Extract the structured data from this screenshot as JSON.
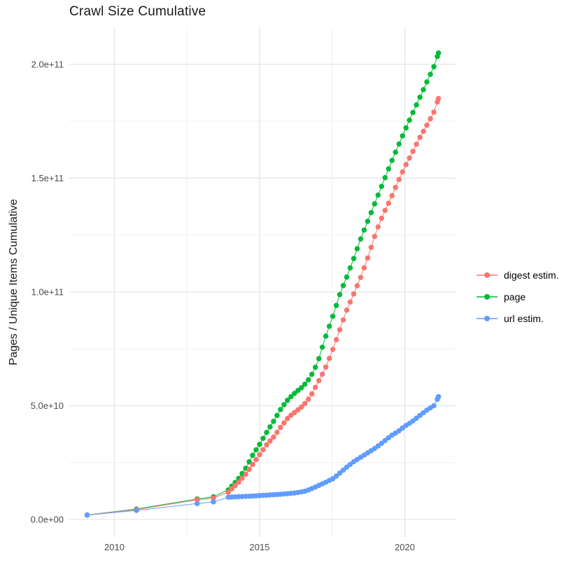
{
  "figure": {
    "title": "Crawl Size Cumulative",
    "y_axis_title": "Pages / Unique Items Cumulative"
  },
  "chart_data": {
    "type": "scatter",
    "title": "Crawl Size Cumulative",
    "xlabel": "",
    "ylabel": "Pages / Unique Items Cumulative",
    "grid": true,
    "legend_position": "right",
    "xlim": [
      2008.446,
      2021.747
    ],
    "ylim": [
      -7700000000.0,
      216600000000.0
    ],
    "x_ticks": {
      "major": [
        2010,
        2015,
        2020
      ],
      "major_labels": [
        "2010",
        "2015",
        "2020"
      ],
      "minor": [
        2012.5,
        2017.5
      ]
    },
    "y_ticks": {
      "major": [
        0,
        50000000000.0,
        100000000000.0,
        150000000000.0,
        200000000000.0
      ],
      "major_labels": [
        "0.0e+00",
        "5.0e+10",
        "1.0e+11",
        "1.5e+11",
        "2.0e+11"
      ],
      "minor": [
        25000000000.0,
        75000000000.0,
        125000000000.0,
        175000000000.0
      ]
    },
    "dense_from_year": 2013.92,
    "point_interval_years": 0.12,
    "point_radius": 3.75,
    "draw_order": [
      "page",
      "digest estim.",
      "url estim."
    ],
    "series": [
      {
        "name": "digest estim.",
        "color": "#F8766D",
        "points": [
          [
            2009.06,
            2000000000.0
          ],
          [
            2010.76,
            4400000000.0
          ],
          [
            2012.85,
            8600000000.0
          ],
          [
            2013.41,
            9400000000.0
          ],
          [
            2013.92,
            12000000000.0
          ],
          [
            2014.25,
            16000000000.0
          ],
          [
            2014.5,
            19500000000.0
          ],
          [
            2014.75,
            24000000000.0
          ],
          [
            2015.0,
            28500000000.0
          ],
          [
            2015.25,
            33000000000.0
          ],
          [
            2015.5,
            36500000000.0
          ],
          [
            2015.75,
            41000000000.0
          ],
          [
            2016.0,
            45000000000.0
          ],
          [
            2016.25,
            47500000000.0
          ],
          [
            2016.5,
            50000000000.0
          ],
          [
            2016.75,
            54000000000.0
          ],
          [
            2017.0,
            60000000000.0
          ],
          [
            2017.25,
            66000000000.0
          ],
          [
            2017.5,
            74000000000.0
          ],
          [
            2017.75,
            83000000000.0
          ],
          [
            2018.0,
            92000000000.0
          ],
          [
            2018.27,
            100000000000.0
          ],
          [
            2018.5,
            107000000000.0
          ],
          [
            2018.75,
            116000000000.0
          ],
          [
            2019.0,
            126000000000.0
          ],
          [
            2019.25,
            134000000000.0
          ],
          [
            2019.5,
            140500000000.0
          ],
          [
            2019.75,
            148000000000.0
          ],
          [
            2020.0,
            155000000000.0
          ],
          [
            2020.25,
            161000000000.0
          ],
          [
            2020.5,
            167500000000.0
          ],
          [
            2020.75,
            173000000000.0
          ],
          [
            2021.0,
            179000000000.0
          ],
          [
            2021.16,
            185000000000.0
          ]
        ]
      },
      {
        "name": "page",
        "color": "#00BA38",
        "points": [
          [
            2009.06,
            2000000000.0
          ],
          [
            2010.76,
            4600000000.0
          ],
          [
            2012.85,
            9000000000.0
          ],
          [
            2013.41,
            10000000000.0
          ],
          [
            2013.92,
            13000000000.0
          ],
          [
            2014.25,
            17500000000.0
          ],
          [
            2014.5,
            22000000000.0
          ],
          [
            2014.75,
            28000000000.0
          ],
          [
            2015.0,
            33000000000.0
          ],
          [
            2015.25,
            38500000000.0
          ],
          [
            2015.5,
            43500000000.0
          ],
          [
            2015.75,
            49000000000.0
          ],
          [
            2016.0,
            53000000000.0
          ],
          [
            2016.25,
            56000000000.0
          ],
          [
            2016.5,
            58500000000.0
          ],
          [
            2016.75,
            62500000000.0
          ],
          [
            2017.0,
            69000000000.0
          ],
          [
            2017.25,
            79500000000.0
          ],
          [
            2017.5,
            88500000000.0
          ],
          [
            2017.79,
            100000000000.0
          ],
          [
            2018.0,
            106500000000.0
          ],
          [
            2018.25,
            115000000000.0
          ],
          [
            2018.5,
            124000000000.0
          ],
          [
            2018.75,
            132000000000.0
          ],
          [
            2019.0,
            140000000000.0
          ],
          [
            2019.25,
            148000000000.0
          ],
          [
            2019.5,
            156000000000.0
          ],
          [
            2019.75,
            163500000000.0
          ],
          [
            2020.0,
            171000000000.0
          ],
          [
            2020.25,
            178000000000.0
          ],
          [
            2020.5,
            185000000000.0
          ],
          [
            2020.75,
            192000000000.0
          ],
          [
            2021.0,
            199000000000.0
          ],
          [
            2021.16,
            205000000000.0
          ]
        ]
      },
      {
        "name": "url estim.",
        "color": "#619CFF",
        "points": [
          [
            2009.06,
            1900000000.0
          ],
          [
            2010.76,
            4000000000.0
          ],
          [
            2012.85,
            7000000000.0
          ],
          [
            2013.41,
            7700000000.0
          ],
          [
            2013.92,
            9800000000.0
          ],
          [
            2014.25,
            10000000000.0
          ],
          [
            2014.75,
            10300000000.0
          ],
          [
            2015.25,
            10700000000.0
          ],
          [
            2015.75,
            11100000000.0
          ],
          [
            2016.25,
            11700000000.0
          ],
          [
            2016.6,
            12500000000.0
          ],
          [
            2016.86,
            13900000000.0
          ],
          [
            2017.25,
            16200000000.0
          ],
          [
            2017.55,
            18100000000.0
          ],
          [
            2018.0,
            23000000000.0
          ],
          [
            2018.27,
            25700000000.0
          ],
          [
            2018.5,
            27500000000.0
          ],
          [
            2018.75,
            29500000000.0
          ],
          [
            2019.0,
            31500000000.0
          ],
          [
            2019.25,
            34000000000.0
          ],
          [
            2019.55,
            37000000000.0
          ],
          [
            2019.75,
            38500000000.0
          ],
          [
            2020.0,
            41000000000.0
          ],
          [
            2020.25,
            43000000000.0
          ],
          [
            2020.5,
            45500000000.0
          ],
          [
            2020.75,
            48000000000.0
          ],
          [
            2021.0,
            50000000000.0
          ],
          [
            2021.04,
            50500000000.0
          ],
          [
            2021.16,
            54000000000.0
          ]
        ]
      }
    ],
    "style": {
      "grid_major_color": "#e5e5e5",
      "grid_minor_color": "#f0f0f0",
      "tick_label_color": "#4d4d4d",
      "title_color": "#1a1a1a"
    }
  }
}
